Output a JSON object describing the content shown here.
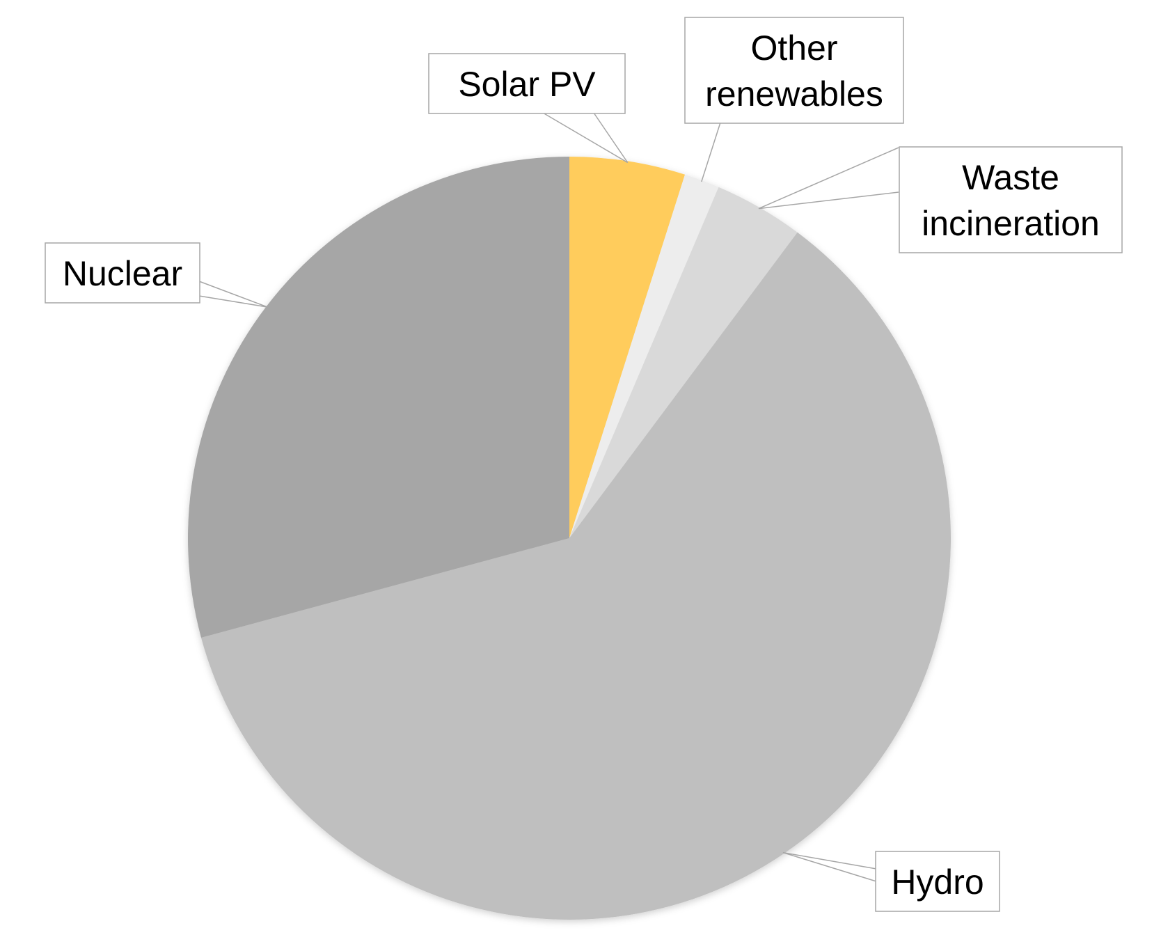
{
  "chart_data": {
    "type": "pie",
    "title": "",
    "start_angle_deg": 0,
    "direction": "clockwise",
    "legend": "none",
    "slices": [
      {
        "label": [
          "Solar PV"
        ],
        "value": 4.9,
        "color": "#FFCC5C"
      },
      {
        "label": [
          "Other",
          "renewables"
        ],
        "value": 1.5,
        "color": "#EDEDED"
      },
      {
        "label": [
          "Waste",
          "incineration"
        ],
        "value": 3.8,
        "color": "#D9D9D9"
      },
      {
        "label": [
          "Hydro"
        ],
        "value": 60.6,
        "color": "#BFBFBF"
      },
      {
        "label": [
          "Nuclear"
        ],
        "value": 29.2,
        "color": "#A6A6A6"
      }
    ]
  }
}
